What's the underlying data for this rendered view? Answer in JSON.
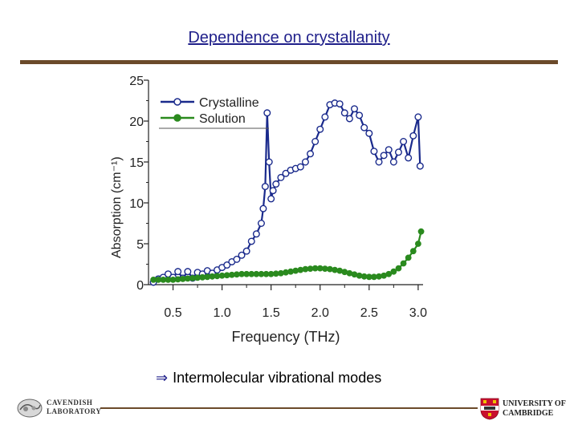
{
  "slide": {
    "title": "Dependence on crystallanity",
    "bullet_symbol": "⇒",
    "bullet_text": "Intermolecular vibrational modes",
    "logo_left_line1": "CAVENDISH",
    "logo_left_line2": "LABORATORY",
    "logo_right_line1": "UNIVERSITY OF",
    "logo_right_line2": "CAMBRIDGE"
  },
  "colors": {
    "title": "#1f1f8a",
    "rule": "#6b4a2a",
    "crystalline": "#1a2a8c",
    "solution": "#2a8a1e"
  },
  "chart_data": {
    "type": "line",
    "title": "",
    "xlabel": "Frequency (THz)",
    "ylabel": "Absorption (cm⁻¹)",
    "xlim": [
      0.25,
      3.05
    ],
    "ylim": [
      0,
      25
    ],
    "xticks": [
      0.5,
      1.0,
      1.5,
      2.0,
      2.5,
      3.0
    ],
    "xtick_labels": [
      "0.5",
      "1.0",
      "1.5",
      "2.0",
      "2.5",
      "3.0"
    ],
    "yticks": [
      0,
      5,
      10,
      15,
      20,
      25
    ],
    "ytick_labels": [
      "0",
      "5",
      "10",
      "15",
      "20",
      "25"
    ],
    "legend_position": "top-left",
    "series": [
      {
        "name": "Crystalline",
        "marker": "open-circle",
        "x": [
          0.3,
          0.35,
          0.4,
          0.45,
          0.5,
          0.55,
          0.6,
          0.65,
          0.7,
          0.75,
          0.8,
          0.85,
          0.9,
          0.95,
          1.0,
          1.05,
          1.1,
          1.15,
          1.2,
          1.25,
          1.3,
          1.35,
          1.4,
          1.42,
          1.44,
          1.46,
          1.48,
          1.5,
          1.52,
          1.55,
          1.6,
          1.65,
          1.7,
          1.75,
          1.8,
          1.85,
          1.9,
          1.95,
          2.0,
          2.05,
          2.1,
          2.15,
          2.2,
          2.25,
          2.3,
          2.35,
          2.4,
          2.45,
          2.5,
          2.55,
          2.6,
          2.65,
          2.7,
          2.75,
          2.8,
          2.85,
          2.9,
          2.95,
          3.0,
          3.02
        ],
        "y": [
          0.3,
          0.7,
          0.9,
          1.3,
          0.9,
          1.6,
          0.8,
          1.6,
          0.8,
          1.5,
          1.3,
          1.7,
          1.4,
          1.8,
          2.1,
          2.4,
          2.8,
          3.1,
          3.6,
          4.1,
          5.3,
          6.2,
          7.5,
          9.3,
          12.0,
          21.0,
          15.0,
          10.5,
          11.5,
          12.3,
          13.1,
          13.6,
          14.0,
          14.2,
          14.4,
          15.0,
          16.0,
          17.5,
          19.0,
          20.5,
          22.0,
          22.2,
          22.1,
          21.0,
          20.3,
          21.5,
          20.7,
          19.2,
          18.5,
          16.3,
          15.0,
          15.8,
          16.5,
          15.0,
          16.2,
          17.5,
          15.5,
          18.2,
          20.5,
          14.5
        ]
      },
      {
        "name": "Solution",
        "marker": "filled-circle",
        "x": [
          0.3,
          0.35,
          0.4,
          0.45,
          0.5,
          0.55,
          0.6,
          0.65,
          0.7,
          0.75,
          0.8,
          0.85,
          0.9,
          0.95,
          1.0,
          1.05,
          1.1,
          1.15,
          1.2,
          1.25,
          1.3,
          1.35,
          1.4,
          1.45,
          1.5,
          1.55,
          1.6,
          1.65,
          1.7,
          1.75,
          1.8,
          1.85,
          1.9,
          1.95,
          2.0,
          2.05,
          2.1,
          2.15,
          2.2,
          2.25,
          2.3,
          2.35,
          2.4,
          2.45,
          2.5,
          2.55,
          2.6,
          2.65,
          2.7,
          2.75,
          2.8,
          2.85,
          2.9,
          2.95,
          3.0,
          3.03
        ],
        "y": [
          0.6,
          0.6,
          0.6,
          0.6,
          0.6,
          0.65,
          0.7,
          0.75,
          0.8,
          0.85,
          0.9,
          0.95,
          1.0,
          1.05,
          1.1,
          1.15,
          1.2,
          1.25,
          1.3,
          1.3,
          1.3,
          1.3,
          1.3,
          1.3,
          1.3,
          1.35,
          1.4,
          1.5,
          1.6,
          1.7,
          1.8,
          1.9,
          1.95,
          2.0,
          2.0,
          1.95,
          1.9,
          1.8,
          1.7,
          1.55,
          1.4,
          1.25,
          1.1,
          1.0,
          0.95,
          0.95,
          1.0,
          1.1,
          1.3,
          1.6,
          2.0,
          2.6,
          3.3,
          4.1,
          5.0,
          6.5
        ]
      }
    ]
  }
}
